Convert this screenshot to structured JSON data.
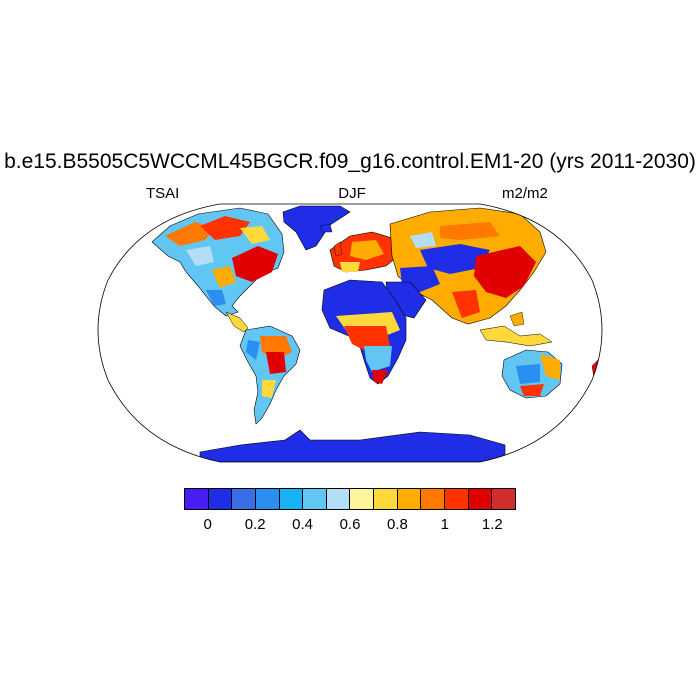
{
  "title": "b.e15.B5505C5WCCML45BGCR.f09_g16.control.EM1-20 (yrs 2011-2030)",
  "left_label": "TSAI",
  "center_label": "DJF",
  "right_label": "m2/m2",
  "colorbar": {
    "colors": [
      "#4a1df5",
      "#1f2ee6",
      "#3a6ee6",
      "#2b8ff2",
      "#19b2f5",
      "#62c6f2",
      "#b4def8",
      "#fff59c",
      "#ffd83c",
      "#ffac00",
      "#ff7800",
      "#ff3200",
      "#e00000",
      "#d22d2d"
    ],
    "tick_labels": [
      "0",
      "0.2",
      "0.4",
      "0.6",
      "0.8",
      "1",
      "1.2"
    ]
  },
  "map": {
    "projection": "robinson",
    "variable": "TSAI"
  }
}
